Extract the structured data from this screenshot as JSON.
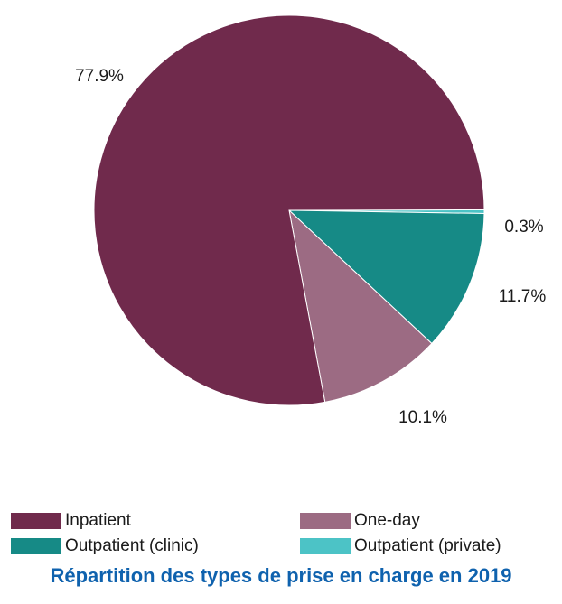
{
  "chart_data": {
    "type": "pie",
    "title": "Répartition des types de prise en charge en 2019",
    "series": [
      {
        "name": "Inpatient",
        "value": 77.9,
        "label": "77.9%",
        "color": "#702a4c"
      },
      {
        "name": "One-day",
        "value": 10.1,
        "label": "10.1%",
        "color": "#9c6b83"
      },
      {
        "name": "Outpatient (clinic)",
        "value": 11.7,
        "label": "11.7%",
        "color": "#168a86"
      },
      {
        "name": "Outpatient (private)",
        "value": 0.3,
        "label": "0.3%",
        "color": "#4cc3c6"
      }
    ],
    "legend_position": "bottom"
  }
}
